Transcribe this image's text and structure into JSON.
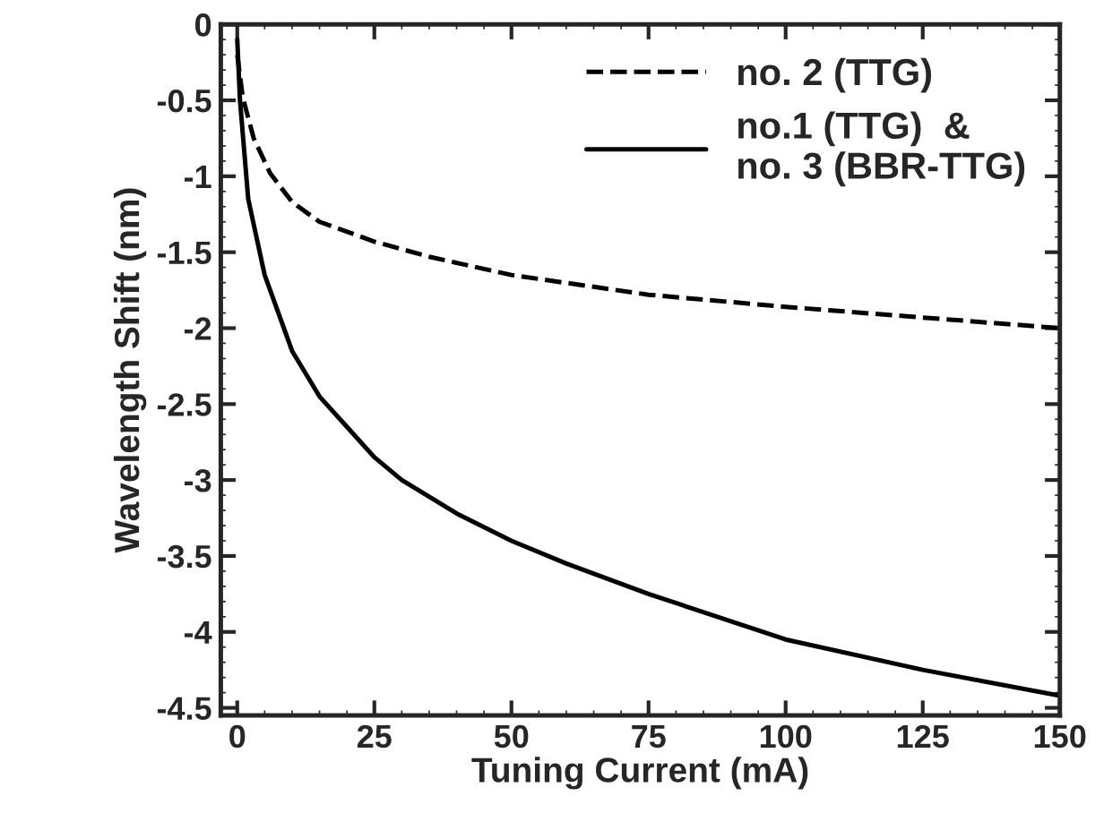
{
  "chart_data": {
    "type": "line",
    "xlabel": "Tuning Current (mA)",
    "ylabel": "Wavelength Shift (nm)",
    "xlim": [
      -3,
      150
    ],
    "ylim": [
      -4.55,
      0
    ],
    "xticks": [
      0,
      25,
      50,
      75,
      100,
      125,
      150
    ],
    "yticks": [
      -4.5,
      -4,
      -3.5,
      -3,
      -2.5,
      -2,
      -1.5,
      -1,
      -0.5,
      0
    ],
    "grid": false,
    "legend": "top right",
    "marker": "none",
    "series": [
      {
        "name": "no. 2 (TTG)",
        "color": "#000000",
        "line_style": "dashed",
        "x": [
          0,
          1,
          3,
          6,
          10,
          15,
          25,
          35,
          50,
          75,
          100,
          125,
          150
        ],
        "values": [
          -0.2,
          -0.48,
          -0.75,
          -0.98,
          -1.17,
          -1.3,
          -1.43,
          -1.53,
          -1.65,
          -1.78,
          -1.86,
          -1.93,
          -2.0
        ]
      },
      {
        "name": "no.1 (TTG)  &\nno. 3 (BBR-TTG)",
        "color": "#000000",
        "line_style": "solid",
        "x": [
          0,
          0.5,
          2,
          5,
          10,
          15,
          20,
          25,
          30,
          40,
          50,
          60,
          75,
          100,
          125,
          150
        ],
        "values": [
          -0.1,
          -0.5,
          -1.15,
          -1.65,
          -2.15,
          -2.45,
          -2.65,
          -2.85,
          -3.0,
          -3.22,
          -3.4,
          -3.55,
          -3.75,
          -4.05,
          -4.25,
          -4.42
        ]
      }
    ]
  }
}
